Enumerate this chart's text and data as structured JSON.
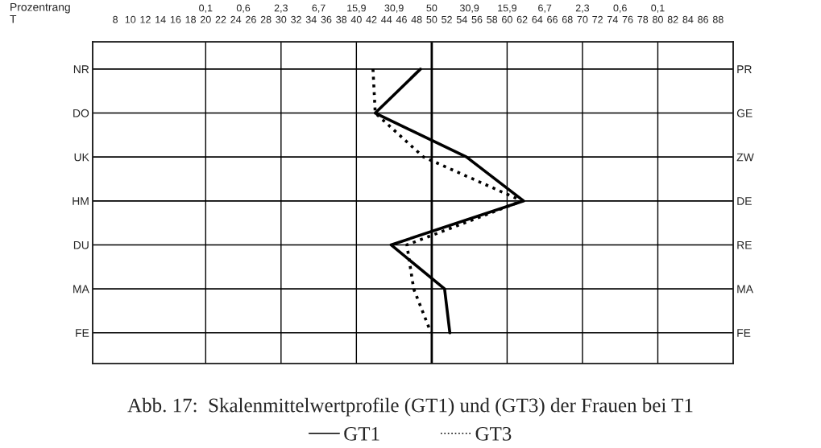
{
  "chart_data": {
    "type": "line",
    "orientation": "horizontal",
    "categories": [
      "NR",
      "DO",
      "UK",
      "HM",
      "DU",
      "MA",
      "FE"
    ],
    "y2_categories": [
      "PR",
      "GE",
      "ZW",
      "DE",
      "RE",
      "MA",
      "FE"
    ],
    "xlim": [
      5,
      90
    ],
    "xticks": [
      8,
      10,
      12,
      14,
      16,
      18,
      20,
      22,
      24,
      26,
      28,
      30,
      32,
      34,
      36,
      38,
      40,
      42,
      44,
      46,
      48,
      50,
      52,
      54,
      56,
      58,
      60,
      62,
      64,
      66,
      68,
      70,
      72,
      74,
      76,
      78,
      80,
      82,
      84,
      86,
      88
    ],
    "series": [
      {
        "name": "GT1",
        "color": "#000000",
        "line_style": "solid",
        "values": [
          48.5,
          42.5,
          54.6,
          62.2,
          44.6,
          51.7,
          52.4
        ]
      },
      {
        "name": "GT3",
        "color": "#000000",
        "line_style": "dotted",
        "values": [
          42.2,
          42.5,
          48.9,
          62.0,
          46.7,
          47.6,
          49.9
        ]
      }
    ],
    "ref_lines": [
      {
        "axis": "x",
        "value": 20,
        "color": "#000000"
      },
      {
        "axis": "x",
        "value": 30,
        "color": "#000000"
      },
      {
        "axis": "x",
        "value": 40,
        "color": "#000000"
      },
      {
        "axis": "x",
        "value": 50,
        "color": "#000000",
        "line_style": "solid"
      },
      {
        "axis": "x",
        "value": 60,
        "color": "#000000"
      },
      {
        "axis": "x",
        "value": 70,
        "color": "#000000"
      },
      {
        "axis": "x",
        "value": 80,
        "color": "#000000"
      }
    ],
    "grid": "y",
    "legend": "bottom",
    "marker": "none",
    "annotations": [
      "Prozentrang",
      "T",
      "Abb. 17:  Skalenmittelwertprofile (GT1) und (GT3) der Frauen bei T1",
      "0,1",
      "0,6",
      "2,3",
      "6,7",
      "15,9",
      "30,9",
      "50",
      "30,9",
      "15,9",
      "6,7",
      "2,3",
      "0,6",
      "0,1"
    ]
  }
}
